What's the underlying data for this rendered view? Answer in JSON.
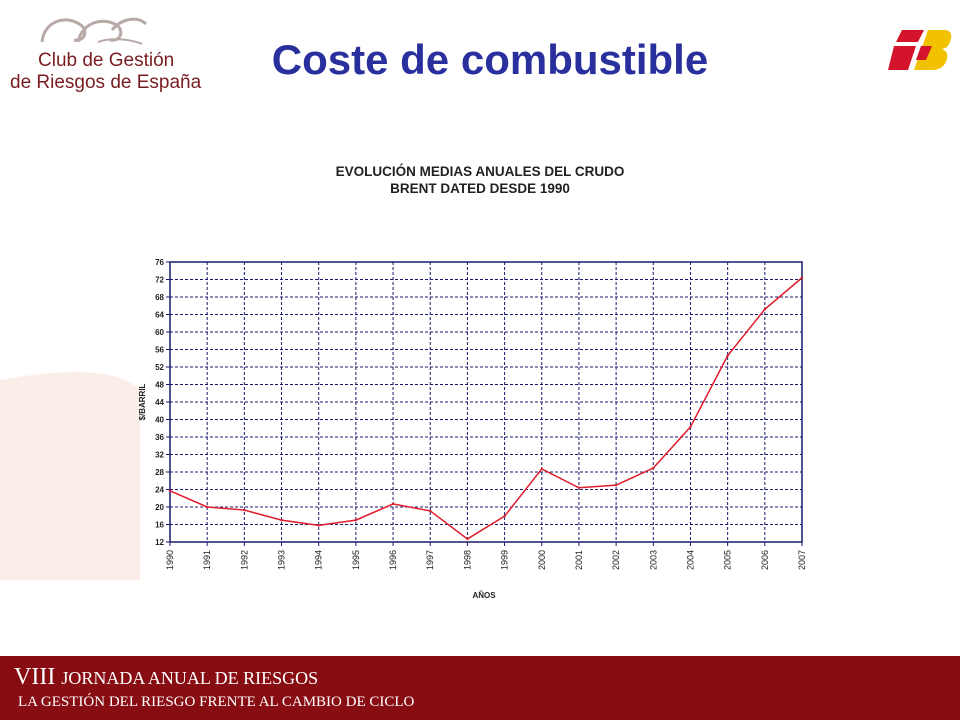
{
  "header": {
    "logo_line1": "Club de Gestión",
    "logo_line2": "de Riesgos de España",
    "title": "Coste de combustible"
  },
  "footer": {
    "roman": "VIII",
    "line1_rest": "JORNADA ANUAL DE RIESGOS",
    "line2": "LA GESTIÓN DEL RIESGO FRENTE AL CAMBIO DE CICLO"
  },
  "colors": {
    "title": "#2a2f9e",
    "footer_bg": "#870d12",
    "line": "#e01b2b",
    "grid": "#1a1a6e",
    "brand_red": "#d4142a",
    "brand_yellow": "#f2c200"
  },
  "icons": {
    "logo": "club-swirl-logo",
    "brand": "airline-brand-logo"
  },
  "chart_data": {
    "type": "line",
    "title_line1": "EVOLUCIÓN  MEDIAS ANUALES DEL CRUDO",
    "title_line2": "BRENT DATED DESDE 1990",
    "xlabel": "AÑOS",
    "ylabel": "$/BARRIL",
    "categories": [
      "1990",
      "1991",
      "1992",
      "1993",
      "1994",
      "1995",
      "1996",
      "1997",
      "1998",
      "1999",
      "2000",
      "2001",
      "2002",
      "2003",
      "2004",
      "2005",
      "2006",
      "2007"
    ],
    "series": [
      {
        "values": [
          23.7,
          20.0,
          19.3,
          17.0,
          15.8,
          17.0,
          20.7,
          19.1,
          12.7,
          17.9,
          28.7,
          24.4,
          25.0,
          28.9,
          38.3,
          54.6,
          65.2,
          72.4
        ]
      }
    ],
    "ylim": [
      12,
      76
    ],
    "yticks": [
      12,
      16,
      20,
      24,
      28,
      32,
      36,
      40,
      44,
      48,
      52,
      56,
      60,
      64,
      68,
      72,
      76
    ],
    "grid": true,
    "legend": "none"
  }
}
